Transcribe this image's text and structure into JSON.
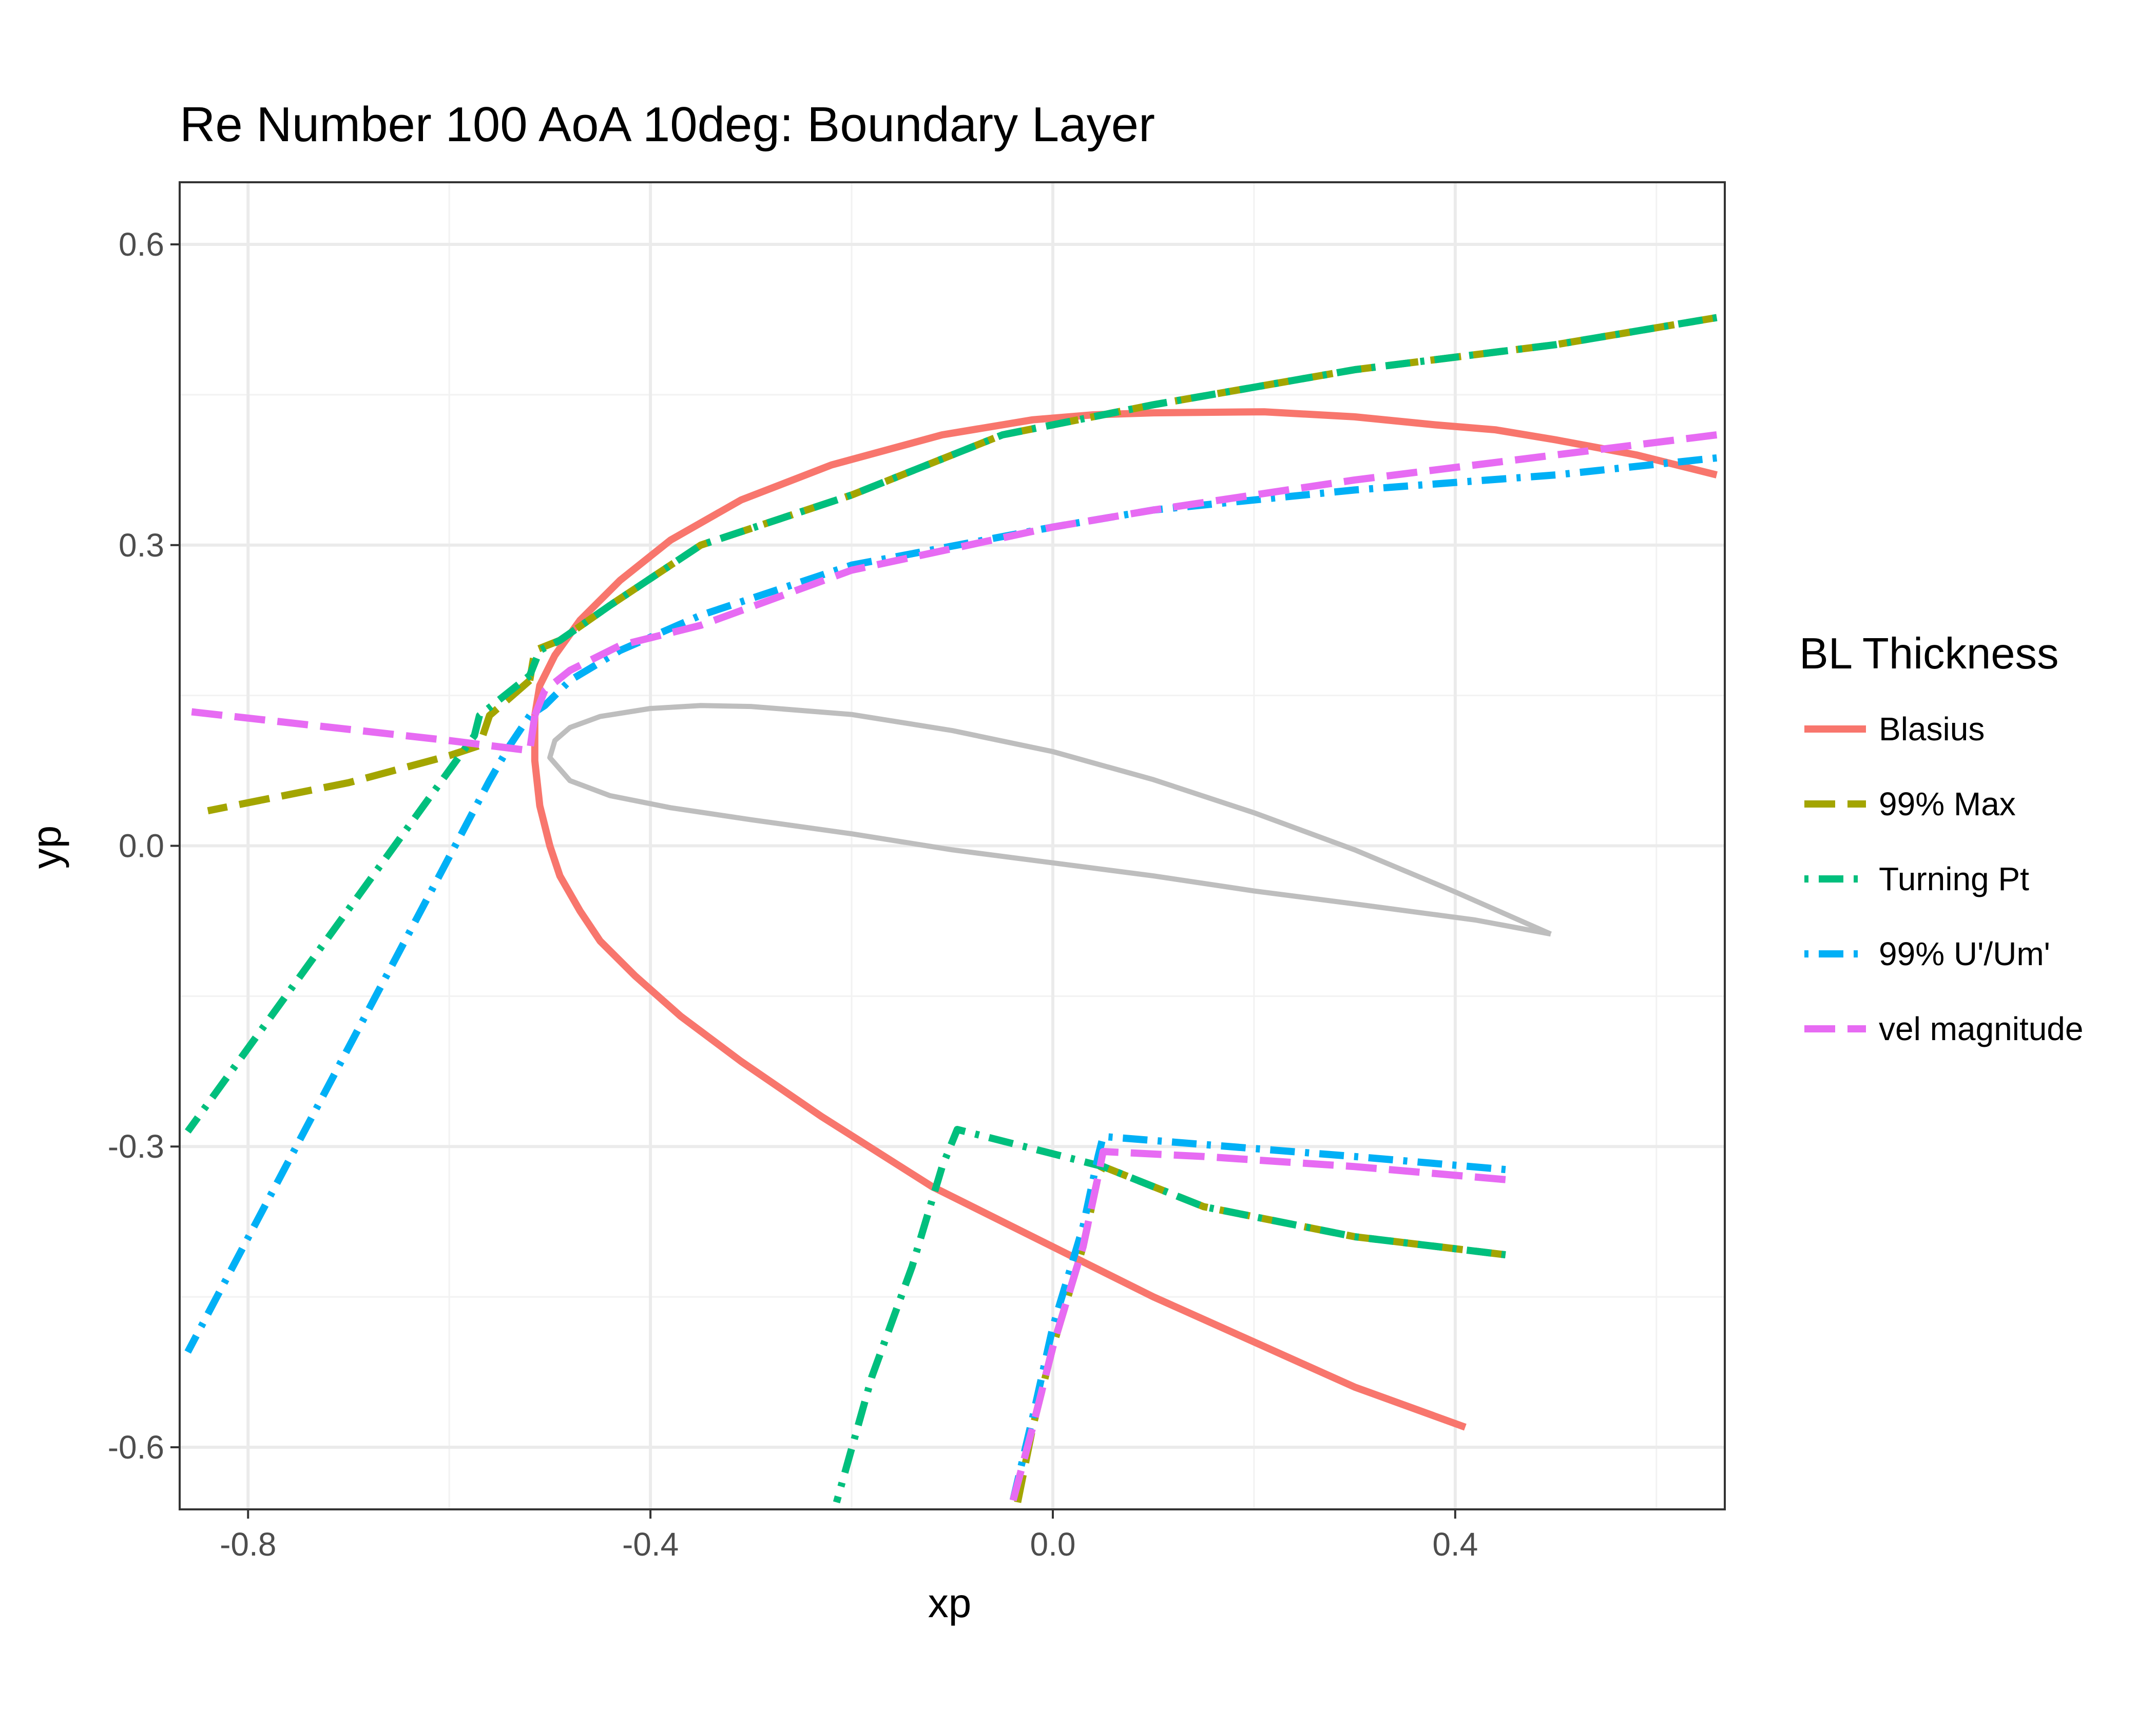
{
  "chart_data": {
    "type": "line",
    "title": "Re Number 100 AoA 10deg: Boundary Layer",
    "xlabel": "xp",
    "ylabel": "yp",
    "xlim": [
      -0.868,
      0.668
    ],
    "ylim": [
      -0.662,
      0.662
    ],
    "x_ticks": [
      -0.8,
      -0.4,
      0.0,
      0.4
    ],
    "x_tick_labels": [
      "-0.8",
      "-0.4",
      "0.0",
      "0.4"
    ],
    "y_ticks": [
      0.6,
      0.3,
      0.0,
      -0.3,
      -0.6
    ],
    "y_tick_labels": [
      "0.6",
      "0.3",
      "0.0",
      "-0.3",
      "-0.6"
    ],
    "x_minor": [
      -0.6,
      -0.2,
      0.2,
      0.6
    ],
    "y_minor": [
      0.45,
      0.15,
      -0.15,
      -0.45
    ],
    "grid": true,
    "legend": {
      "title": "BL Thickness",
      "position": "right",
      "entries": [
        "Blasius",
        "99% Max",
        "Turning Pt",
        "99% U'/Um'",
        "vel magnitude"
      ]
    },
    "airfoil": {
      "color": "#bebebe",
      "x": [
        0.495,
        0.42,
        0.3,
        0.2,
        0.1,
        0.0,
        -0.1,
        -0.2,
        -0.3,
        -0.38,
        -0.44,
        -0.48,
        -0.5,
        -0.495,
        -0.48,
        -0.45,
        -0.4,
        -0.35,
        -0.3,
        -0.2,
        -0.1,
        0.0,
        0.1,
        0.2,
        0.3,
        0.4,
        0.495
      ],
      "y": [
        -0.088,
        -0.074,
        -0.058,
        -0.045,
        -0.03,
        -0.017,
        -0.004,
        0.012,
        0.026,
        0.038,
        0.05,
        0.065,
        0.088,
        0.105,
        0.118,
        0.129,
        0.137,
        0.14,
        0.139,
        0.131,
        0.115,
        0.094,
        0.066,
        0.033,
        -0.004,
        -0.046,
        -0.088
      ]
    },
    "series": [
      {
        "name": "Blasius",
        "color": "#f8766d",
        "dash": "solid",
        "segments": [
          {
            "x": [
              0.66,
              0.58,
              0.5,
              0.44,
              0.38,
              0.3,
              0.21,
              0.1,
              0.04,
              -0.02,
              -0.11,
              -0.22,
              -0.31,
              -0.38,
              -0.43,
              -0.47,
              -0.495,
              -0.51,
              -0.515,
              -0.515,
              -0.51,
              -0.5,
              -0.49,
              -0.47,
              -0.45,
              -0.415,
              -0.37,
              -0.31,
              -0.23,
              -0.12,
              0.0,
              0.1,
              0.2,
              0.3,
              0.41
            ],
            "y": [
              0.37,
              0.39,
              0.405,
              0.415,
              0.42,
              0.428,
              0.433,
              0.432,
              0.43,
              0.425,
              0.41,
              0.38,
              0.345,
              0.305,
              0.265,
              0.225,
              0.19,
              0.16,
              0.13,
              0.085,
              0.04,
              0.0,
              -0.03,
              -0.065,
              -0.095,
              -0.13,
              -0.17,
              -0.215,
              -0.27,
              -0.34,
              -0.4,
              -0.45,
              -0.495,
              -0.54,
              -0.58
            ]
          }
        ]
      },
      {
        "name": "99% Max",
        "color": "#a3a500",
        "dash": "long",
        "segments": [
          {
            "x": [
              0.66,
              0.5,
              0.3,
              0.1,
              -0.05,
              -0.2,
              -0.35,
              -0.44,
              -0.49,
              -0.515,
              -0.52
            ],
            "y": [
              0.527,
              0.5,
              0.475,
              0.44,
              0.41,
              0.35,
              0.3,
              0.24,
              0.205,
              0.195,
              0.165
            ]
          },
          {
            "x": [
              -0.52,
              -0.56,
              -0.57,
              -0.6,
              -0.7,
              -0.84
            ],
            "y": [
              0.165,
              0.13,
              0.1,
              0.09,
              0.063,
              0.035
            ]
          },
          {
            "x": [
              0.45,
              0.3,
              0.15,
              0.05,
              0.045,
              0.03,
              0.0,
              -0.02,
              -0.035
            ],
            "y": [
              -0.408,
              -0.39,
              -0.36,
              -0.32,
              -0.33,
              -0.4,
              -0.5,
              -0.58,
              -0.655
            ]
          }
        ]
      },
      {
        "name": "Turning Pt",
        "color": "#00bf7d",
        "dash": "dotdash",
        "segments": [
          {
            "x": [
              0.66,
              0.5,
              0.3,
              0.1,
              -0.05,
              -0.2,
              -0.35,
              -0.44,
              -0.49,
              -0.51,
              -0.52
            ],
            "y": [
              0.527,
              0.5,
              0.475,
              0.44,
              0.41,
              0.35,
              0.3,
              0.24,
              0.205,
              0.195,
              0.17
            ]
          },
          {
            "x": [
              -0.52,
              -0.57,
              -0.575,
              -0.86
            ],
            "y": [
              0.17,
              0.13,
              0.11,
              -0.285
            ]
          },
          {
            "x": [
              0.45,
              0.3,
              0.15,
              0.05,
              -0.095,
              -0.11,
              -0.14,
              -0.18,
              -0.215
            ],
            "y": [
              -0.408,
              -0.39,
              -0.36,
              -0.32,
              -0.283,
              -0.32,
              -0.42,
              -0.53,
              -0.655
            ]
          }
        ]
      },
      {
        "name": "99% U'/Um'",
        "color": "#00b0f6",
        "dash": "dotdash",
        "segments": [
          {
            "x": [
              0.66,
              0.5,
              0.3,
              0.1,
              0.0,
              -0.2,
              -0.35,
              -0.43,
              -0.48,
              -0.505,
              -0.52
            ],
            "y": [
              0.387,
              0.37,
              0.355,
              0.335,
              0.318,
              0.28,
              0.23,
              0.195,
              0.165,
              0.14,
              0.13
            ]
          },
          {
            "x": [
              -0.52,
              -0.54,
              -0.56,
              -0.86
            ],
            "y": [
              0.13,
              0.1,
              0.065,
              -0.505
            ]
          },
          {
            "x": [
              0.45,
              0.3,
              0.15,
              0.05,
              0.045,
              0.03,
              0.0,
              -0.02,
              -0.04
            ],
            "y": [
              -0.323,
              -0.31,
              -0.298,
              -0.29,
              -0.31,
              -0.38,
              -0.48,
              -0.57,
              -0.655
            ]
          }
        ]
      },
      {
        "name": "vel magnitude",
        "color": "#e76bf3",
        "dash": "long",
        "segments": [
          {
            "x": [
              0.66,
              0.5,
              0.3,
              0.1,
              0.0,
              -0.2,
              -0.35,
              -0.43,
              -0.48,
              -0.505,
              -0.515
            ],
            "y": [
              0.41,
              0.39,
              0.365,
              0.335,
              0.318,
              0.275,
              0.22,
              0.2,
              0.175,
              0.155,
              0.13
            ]
          },
          {
            "x": [
              -0.515,
              -0.52,
              -0.6,
              -0.868
            ],
            "y": [
              0.13,
              0.095,
              0.105,
              0.135
            ]
          },
          {
            "x": [
              0.45,
              0.3,
              0.15,
              0.05,
              0.045,
              0.03,
              0.0,
              -0.02,
              -0.04
            ],
            "y": [
              -0.333,
              -0.32,
              -0.31,
              -0.305,
              -0.33,
              -0.4,
              -0.5,
              -0.58,
              -0.655
            ]
          }
        ]
      }
    ]
  }
}
